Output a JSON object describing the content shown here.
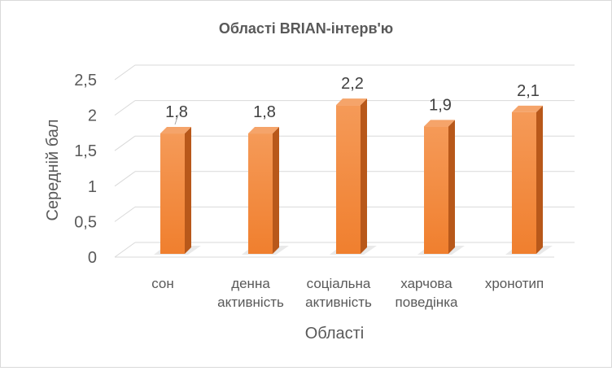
{
  "chart_data": {
    "type": "bar",
    "title": "Області BRIAN-інтерв'ю",
    "xlabel": "Області",
    "ylabel": "Середній бал",
    "categories": [
      [
        "сон"
      ],
      [
        "денна",
        "активність"
      ],
      [
        "соціальна",
        "активність"
      ],
      [
        "харчова",
        "поведінка"
      ],
      [
        "хронотип"
      ]
    ],
    "values": [
      1.8,
      1.8,
      2.2,
      1.9,
      2.1
    ],
    "value_labels": [
      "1,8",
      "1,8",
      "2,2",
      "1,9",
      "2,1"
    ],
    "ylim": [
      0,
      2.5
    ],
    "yticks": [
      0,
      0.5,
      1,
      1.5,
      2,
      2.5
    ],
    "ytick_labels": [
      "0",
      "0,5",
      "1",
      "1,5",
      "2",
      "2,5"
    ],
    "grid": true,
    "bar_color": "#f07f2e",
    "bar_side_color": "#b8581a",
    "bar_top_color": "#f5a46a",
    "gridline_color": "#d9d9d9"
  }
}
